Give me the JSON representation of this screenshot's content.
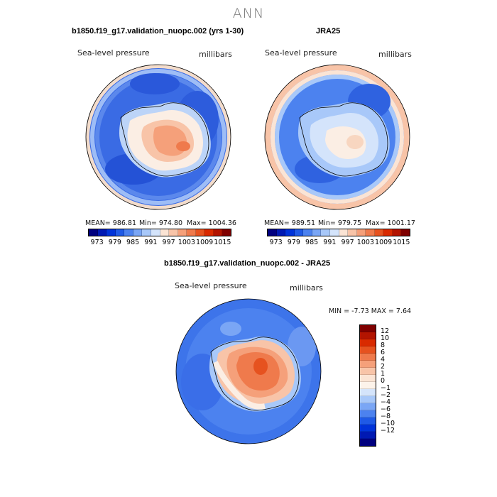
{
  "header": {
    "title": "ANN"
  },
  "panels": [
    {
      "title": "b1850.f19_g17.validation_nuopc.002 (yrs 1-30)",
      "variable": "Sea-level pressure",
      "units": "millibars",
      "stats": {
        "mean": "MEAN= 986.81",
        "min": "Min= 974.80",
        "max": "Max= 1004.36"
      }
    },
    {
      "title": "JRA25",
      "variable": "Sea-level pressure",
      "units": "millibars",
      "stats": {
        "mean": "MEAN= 989.51",
        "min": "Min= 979.75",
        "max": "Max= 1001.17"
      }
    },
    {
      "title": "b1850.f19_g17.validation_nuopc.002 - JRA25",
      "variable": "Sea-level pressure",
      "units": "millibars",
      "stats": {
        "minmax": "MIN =  -7.73 MAX =   7.64"
      }
    }
  ],
  "colorbar_abs": {
    "ticks": [
      "973",
      "979",
      "985",
      "991",
      "997",
      "1003",
      "1009",
      "1015"
    ],
    "colors": [
      "#00007f",
      "#0019b3",
      "#0033d9",
      "#1f5ae6",
      "#4c82ef",
      "#7aa6f5",
      "#a8c8f9",
      "#d4e4fb",
      "#fbe4d4",
      "#f8c4a8",
      "#f5a07a",
      "#ef7a4c",
      "#e6521f",
      "#d92a00",
      "#b31400",
      "#7f0000"
    ]
  },
  "colorbar_diff": {
    "ticks": [
      "12",
      "10",
      "8",
      "6",
      "4",
      "2",
      "1",
      "0",
      "−1",
      "−2",
      "−4",
      "−6",
      "−8",
      "−10",
      "−12"
    ],
    "colors": [
      "#7f0000",
      "#b31400",
      "#d92a00",
      "#e6521f",
      "#ef7a4c",
      "#f5a07a",
      "#f8c4a8",
      "#fbe4d4",
      "#fdf3ea",
      "#d4e4fb",
      "#a8c8f9",
      "#7aa6f5",
      "#4c82ef",
      "#1f5ae6",
      "#0033d9",
      "#0019b3",
      "#00007f"
    ]
  },
  "colors": {
    "ocean_low": "#2f5fe0",
    "ocean_mid": "#6f98f0",
    "ocean_light": "#bcd4f8",
    "land_high": "#f5a07a",
    "land_peak": "#ef7a4c",
    "neutral": "#fbeee4"
  }
}
